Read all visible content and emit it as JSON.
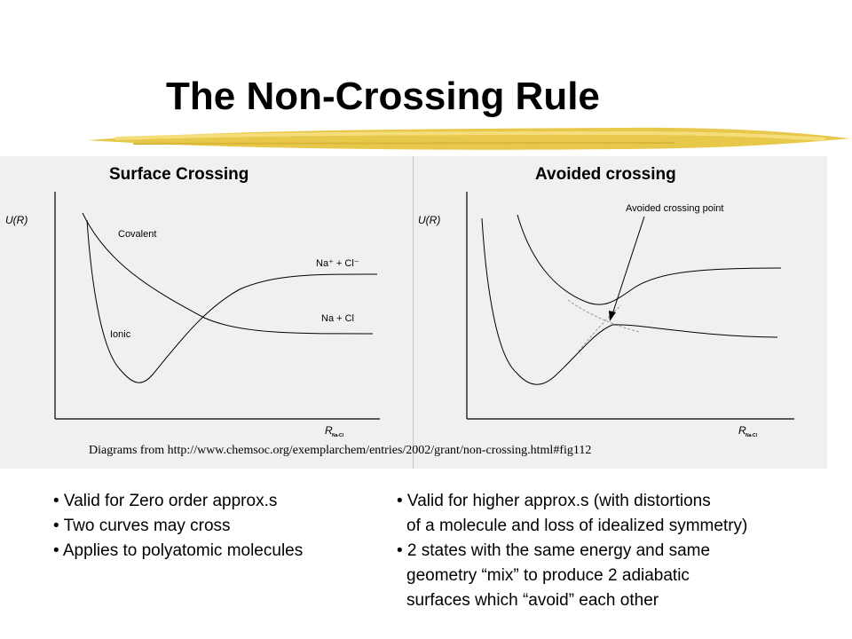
{
  "title": "The Non-Crossing Rule",
  "colors": {
    "underline": "#e8c84a",
    "panel_bg": "#f0f0f0"
  },
  "panels": {
    "left": {
      "heading": "Surface Crossing",
      "y_axis_label": "U(R)",
      "x_axis_label": "R",
      "x_axis_subscript": "Na-Cl",
      "curve_labels": {
        "covalent": "Covalent",
        "ionic": "Ionic",
        "ionic_asymptote": "Na⁺ + Cl⁻",
        "covalent_asymptote": "Na + Cl"
      }
    },
    "right": {
      "heading": "Avoided crossing",
      "y_axis_label": "U(R)",
      "x_axis_label": "R",
      "x_axis_subscript": "Na-Cl",
      "annotation": "Avoided crossing point"
    }
  },
  "source": "Diagrams from http://www.chemsoc.org/exemplarchem/entries/2002/grant/non-crossing.html#fig112",
  "bullets_left": [
    "• Valid for Zero order approx.s",
    "• Two curves may cross",
    "• Applies to polyatomic molecules"
  ],
  "bullets_right": [
    "• Valid for higher approx.s (with distortions",
    "of a molecule and loss of idealized symmetry)",
    "• 2 states with the same energy and same",
    "geometry “mix” to produce 2 adiabatic",
    "surfaces which “avoid” each other"
  ]
}
